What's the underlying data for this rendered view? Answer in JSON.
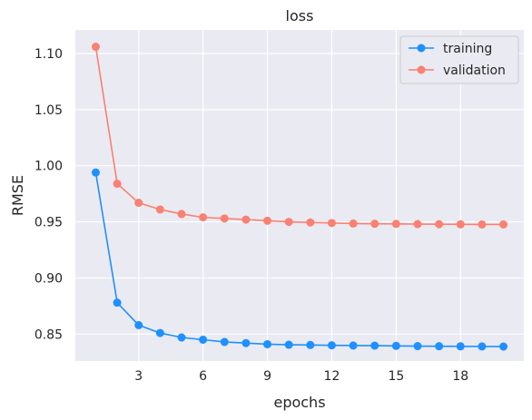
{
  "chart_data": {
    "type": "line",
    "title": "loss",
    "xlabel": "epochs",
    "ylabel": "RMSE",
    "xlim": [
      0.05,
      20.95
    ],
    "ylim": [
      0.826,
      1.121
    ],
    "x_ticks": [
      3,
      6,
      9,
      12,
      15,
      18
    ],
    "y_ticks": [
      0.85,
      0.9,
      0.95,
      1.0,
      1.05,
      1.1
    ],
    "y_tick_labels": [
      "0.85",
      "0.90",
      "0.95",
      "1.00",
      "1.05",
      "1.10"
    ],
    "grid": true,
    "legend_position": "top-right",
    "x": [
      1,
      2,
      3,
      4,
      5,
      6,
      7,
      8,
      9,
      10,
      11,
      12,
      13,
      14,
      15,
      16,
      17,
      18,
      19,
      20
    ],
    "series": [
      {
        "name": "training",
        "color": "#1e90ff",
        "values": [
          0.994,
          0.878,
          0.858,
          0.851,
          0.847,
          0.845,
          0.843,
          0.842,
          0.841,
          0.8405,
          0.8403,
          0.84,
          0.8398,
          0.8397,
          0.8395,
          0.8393,
          0.8392,
          0.8391,
          0.839,
          0.8389
        ]
      },
      {
        "name": "validation",
        "color": "#fa8072",
        "values": [
          1.106,
          0.984,
          0.967,
          0.961,
          0.957,
          0.954,
          0.953,
          0.952,
          0.951,
          0.95,
          0.9495,
          0.949,
          0.9485,
          0.9483,
          0.9482,
          0.948,
          0.9479,
          0.9478,
          0.9477,
          0.9477
        ]
      }
    ]
  }
}
